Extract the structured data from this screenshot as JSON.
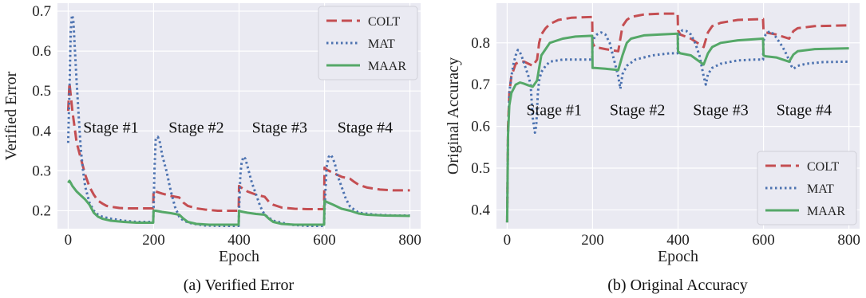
{
  "colors": {
    "COLT": "#c44e52",
    "MAT": "#4c72b0",
    "MAAR": "#55a868"
  },
  "chart_data": [
    {
      "type": "line",
      "caption": "(a)  Verified Error",
      "xlabel": "Epoch",
      "ylabel": "Verified Error",
      "xlim": [
        -25,
        825
      ],
      "ylim": [
        0.155,
        0.72
      ],
      "xticks": [
        0,
        200,
        400,
        600,
        800
      ],
      "yticks": [
        0.2,
        0.3,
        0.4,
        0.5,
        0.6,
        0.7
      ],
      "grid": true,
      "legend_position": "top-right",
      "annotations": [
        {
          "text": "Stage #1",
          "x": 100,
          "y": 0.41
        },
        {
          "text": "Stage #2",
          "x": 300,
          "y": 0.41
        },
        {
          "text": "Stage #3",
          "x": 495,
          "y": 0.41
        },
        {
          "text": "Stage #4",
          "x": 695,
          "y": 0.41
        }
      ],
      "series": [
        {
          "name": "COLT",
          "style": "dashed",
          "x": [
            0,
            3,
            6,
            10,
            15,
            20,
            30,
            40,
            50,
            60,
            70,
            80,
            90,
            100,
            120,
            140,
            160,
            180,
            199,
            200,
            205,
            220,
            240,
            260,
            270,
            280,
            300,
            320,
            350,
            380,
            399,
            400,
            405,
            420,
            440,
            460,
            470,
            480,
            500,
            530,
            560,
            599,
            600,
            605,
            620,
            640,
            660,
            670,
            680,
            700,
            730,
            760,
            800
          ],
          "y": [
            0.45,
            0.52,
            0.49,
            0.45,
            0.41,
            0.37,
            0.33,
            0.29,
            0.26,
            0.24,
            0.225,
            0.218,
            0.212,
            0.21,
            0.207,
            0.206,
            0.206,
            0.206,
            0.206,
            0.25,
            0.248,
            0.243,
            0.237,
            0.233,
            0.22,
            0.212,
            0.206,
            0.203,
            0.2,
            0.2,
            0.2,
            0.262,
            0.258,
            0.248,
            0.24,
            0.235,
            0.222,
            0.215,
            0.208,
            0.205,
            0.204,
            0.204,
            0.308,
            0.303,
            0.295,
            0.285,
            0.28,
            0.272,
            0.265,
            0.258,
            0.253,
            0.251,
            0.251
          ]
        },
        {
          "name": "MAT",
          "style": "dotted",
          "x": [
            0,
            3,
            6,
            9,
            12,
            15,
            20,
            25,
            30,
            35,
            40,
            50,
            60,
            70,
            80,
            100,
            130,
            160,
            199,
            200,
            202,
            205,
            210,
            215,
            220,
            230,
            240,
            250,
            260,
            270,
            290,
            320,
            360,
            399,
            400,
            403,
            406,
            410,
            415,
            420,
            430,
            440,
            450,
            460,
            480,
            520,
            560,
            599,
            600,
            605,
            610,
            615,
            620,
            625,
            630,
            640,
            650,
            660,
            680,
            720,
            760,
            800
          ],
          "y": [
            0.37,
            0.5,
            0.65,
            0.69,
            0.68,
            0.62,
            0.52,
            0.43,
            0.35,
            0.3,
            0.26,
            0.22,
            0.2,
            0.19,
            0.185,
            0.18,
            0.175,
            0.172,
            0.172,
            0.2,
            0.3,
            0.38,
            0.385,
            0.37,
            0.34,
            0.3,
            0.25,
            0.21,
            0.185,
            0.175,
            0.168,
            0.163,
            0.162,
            0.162,
            0.2,
            0.29,
            0.32,
            0.335,
            0.33,
            0.31,
            0.27,
            0.24,
            0.21,
            0.19,
            0.175,
            0.165,
            0.162,
            0.162,
            0.2,
            0.31,
            0.335,
            0.34,
            0.33,
            0.315,
            0.29,
            0.26,
            0.23,
            0.21,
            0.195,
            0.19,
            0.188,
            0.188
          ]
        },
        {
          "name": "MAAR",
          "style": "solid",
          "x": [
            0,
            3,
            6,
            10,
            20,
            30,
            40,
            50,
            60,
            70,
            80,
            100,
            130,
            160,
            199,
            200,
            205,
            220,
            240,
            260,
            270,
            280,
            300,
            330,
            360,
            399,
            400,
            405,
            420,
            440,
            460,
            470,
            480,
            500,
            530,
            560,
            599,
            600,
            605,
            620,
            640,
            660,
            680,
            700,
            740,
            800
          ],
          "y": [
            0.27,
            0.275,
            0.27,
            0.262,
            0.248,
            0.238,
            0.228,
            0.215,
            0.195,
            0.185,
            0.18,
            0.175,
            0.172,
            0.17,
            0.17,
            0.2,
            0.2,
            0.197,
            0.194,
            0.19,
            0.18,
            0.172,
            0.167,
            0.165,
            0.165,
            0.165,
            0.2,
            0.198,
            0.195,
            0.192,
            0.19,
            0.18,
            0.172,
            0.167,
            0.165,
            0.165,
            0.165,
            0.225,
            0.222,
            0.215,
            0.205,
            0.2,
            0.193,
            0.19,
            0.188,
            0.187
          ]
        }
      ]
    },
    {
      "type": "line",
      "caption": "(b)  Original Accuracy",
      "xlabel": "Epoch",
      "ylabel": "Original Accuracy",
      "xlim": [
        -25,
        825
      ],
      "ylim": [
        0.355,
        0.895
      ],
      "xticks": [
        0,
        200,
        400,
        600,
        800
      ],
      "yticks": [
        0.4,
        0.5,
        0.6,
        0.7,
        0.8
      ],
      "grid": true,
      "legend_position": "bottom-right",
      "annotations": [
        {
          "text": "Stage #1",
          "x": 110,
          "y": 0.64
        },
        {
          "text": "Stage #2",
          "x": 305,
          "y": 0.64
        },
        {
          "text": "Stage #3",
          "x": 500,
          "y": 0.64
        },
        {
          "text": "Stage #4",
          "x": 695,
          "y": 0.64
        }
      ],
      "series": [
        {
          "name": "COLT",
          "style": "dashed",
          "x": [
            0,
            2,
            5,
            10,
            20,
            30,
            40,
            50,
            60,
            70,
            75,
            80,
            90,
            100,
            120,
            150,
            199,
            200,
            205,
            230,
            260,
            270,
            280,
            290,
            320,
            360,
            399,
            400,
            405,
            430,
            460,
            470,
            480,
            500,
            540,
            599,
            600,
            605,
            630,
            660,
            670,
            680,
            720,
            800
          ],
          "y": [
            0.37,
            0.6,
            0.68,
            0.72,
            0.75,
            0.755,
            0.755,
            0.75,
            0.745,
            0.76,
            0.8,
            0.82,
            0.835,
            0.845,
            0.855,
            0.86,
            0.862,
            0.8,
            0.79,
            0.785,
            0.78,
            0.84,
            0.855,
            0.862,
            0.868,
            0.87,
            0.87,
            0.83,
            0.82,
            0.81,
            0.79,
            0.825,
            0.84,
            0.848,
            0.855,
            0.857,
            0.83,
            0.825,
            0.82,
            0.81,
            0.828,
            0.835,
            0.84,
            0.842
          ]
        },
        {
          "name": "MAT",
          "style": "dotted",
          "x": [
            0,
            2,
            5,
            10,
            15,
            20,
            25,
            30,
            35,
            40,
            50,
            55,
            60,
            65,
            68,
            70,
            72,
            75,
            80,
            90,
            100,
            130,
            160,
            199,
            200,
            205,
            210,
            220,
            230,
            240,
            250,
            260,
            265,
            270,
            280,
            300,
            340,
            380,
            399,
            400,
            405,
            410,
            420,
            430,
            440,
            450,
            460,
            465,
            470,
            480,
            500,
            540,
            580,
            599,
            600,
            605,
            615,
            625,
            635,
            645,
            655,
            665,
            670,
            680,
            700,
            740,
            800
          ],
          "y": [
            0.37,
            0.58,
            0.68,
            0.72,
            0.75,
            0.77,
            0.783,
            0.778,
            0.765,
            0.75,
            0.72,
            0.7,
            0.62,
            0.585,
            0.6,
            0.64,
            0.68,
            0.71,
            0.73,
            0.745,
            0.755,
            0.76,
            0.76,
            0.76,
            0.8,
            0.815,
            0.82,
            0.825,
            0.82,
            0.8,
            0.76,
            0.72,
            0.69,
            0.725,
            0.745,
            0.76,
            0.77,
            0.775,
            0.775,
            0.815,
            0.825,
            0.83,
            0.828,
            0.82,
            0.8,
            0.77,
            0.72,
            0.7,
            0.725,
            0.74,
            0.75,
            0.758,
            0.76,
            0.76,
            0.805,
            0.82,
            0.828,
            0.82,
            0.805,
            0.79,
            0.77,
            0.745,
            0.738,
            0.745,
            0.75,
            0.754,
            0.755
          ]
        },
        {
          "name": "MAAR",
          "style": "solid",
          "x": [
            0,
            2,
            5,
            10,
            20,
            30,
            40,
            50,
            60,
            70,
            75,
            80,
            90,
            100,
            130,
            160,
            199,
            200,
            205,
            230,
            260,
            270,
            280,
            290,
            320,
            360,
            399,
            400,
            405,
            430,
            460,
            470,
            480,
            500,
            540,
            599,
            600,
            605,
            630,
            660,
            670,
            680,
            720,
            800
          ],
          "y": [
            0.37,
            0.58,
            0.65,
            0.68,
            0.7,
            0.705,
            0.702,
            0.698,
            0.695,
            0.71,
            0.74,
            0.77,
            0.785,
            0.8,
            0.81,
            0.815,
            0.817,
            0.74,
            0.74,
            0.738,
            0.735,
            0.77,
            0.8,
            0.81,
            0.818,
            0.82,
            0.822,
            0.78,
            0.775,
            0.77,
            0.748,
            0.775,
            0.79,
            0.8,
            0.806,
            0.81,
            0.77,
            0.768,
            0.765,
            0.755,
            0.772,
            0.78,
            0.785,
            0.787
          ]
        }
      ]
    }
  ]
}
